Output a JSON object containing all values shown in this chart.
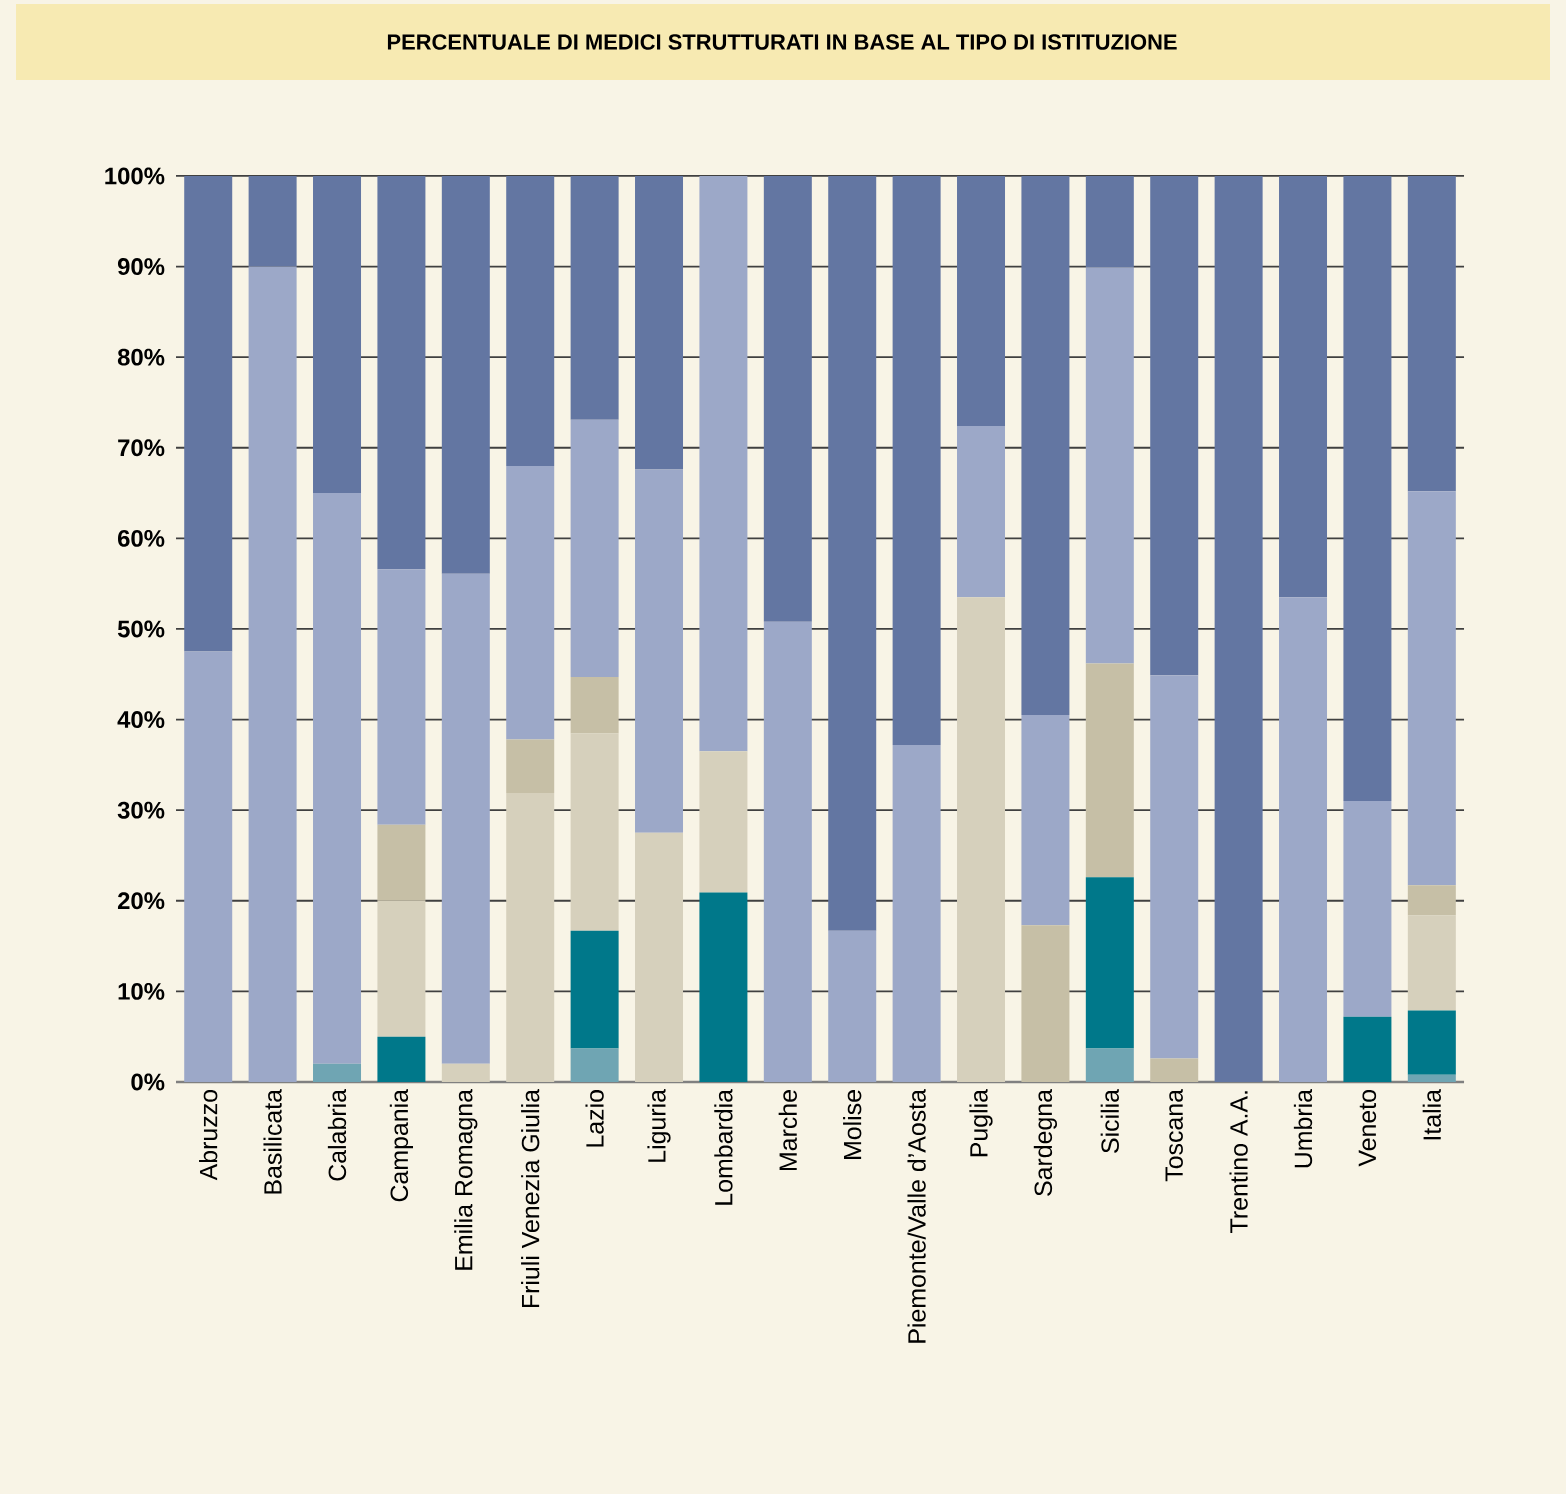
{
  "chart_data": {
    "type": "bar",
    "stacked": true,
    "title": "PERCENTUALE DI MEDICI STRUTTURATI IN BASE AL TIPO DI ISTITUZIONE",
    "categories": [
      "Abruzzo",
      "Basilicata",
      "Calabria",
      "Campania",
      "Emilia Romagna",
      "Friuli Venezia Giulia",
      "Lazio",
      "Liguria",
      "Lombardia",
      "Marche",
      "Molise",
      "Piemonte/Valle d’Aosta",
      "Puglia",
      "Sardegna",
      "Sicilia",
      "Toscana",
      "Trentino A.A.",
      "Umbria",
      "Veneto",
      "Italia"
    ],
    "series": [
      {
        "color": "#6fa5b3",
        "values": [
          0,
          0,
          2,
          0,
          0,
          0,
          3.7,
          0,
          0,
          0,
          0,
          0,
          0,
          0,
          3.7,
          0,
          0,
          0,
          0,
          0.8
        ]
      },
      {
        "color": "#00788a",
        "values": [
          0,
          0,
          0,
          5,
          0,
          0,
          13,
          0,
          20.9,
          0,
          0,
          0,
          0,
          0,
          18.9,
          0,
          0,
          0,
          7.2,
          7.1
        ]
      },
      {
        "color": "#d6d0bc",
        "values": [
          0,
          0,
          0,
          15,
          2,
          31.9,
          21.8,
          27.5,
          15.6,
          0,
          0,
          0,
          53.5,
          0,
          0,
          0,
          0,
          0,
          0,
          10.5
        ]
      },
      {
        "color": "#c6bfa6",
        "values": [
          0,
          0,
          0,
          8.4,
          0,
          5.9,
          6.2,
          0,
          0,
          0,
          0,
          0,
          0,
          17.3,
          23.6,
          2.6,
          0,
          0,
          0,
          3.3
        ]
      },
      {
        "color": "#9ca8c8",
        "values": [
          47.5,
          90,
          63,
          28.2,
          54.1,
          30.2,
          28.4,
          40.1,
          63.5,
          50.8,
          16.7,
          37.2,
          18.9,
          23.2,
          43.7,
          42.3,
          0,
          53.5,
          23.8,
          43.5
        ]
      },
      {
        "color": "#6376a2",
        "values": [
          52.5,
          10,
          35,
          43.4,
          43.9,
          32,
          26.9,
          32.4,
          0,
          49.2,
          83.3,
          62.8,
          27.6,
          59.5,
          10.1,
          55.1,
          100,
          46.5,
          69,
          34.8
        ]
      }
    ],
    "ylim": [
      0,
      100
    ],
    "yticks": [
      {
        "value": 0,
        "label": "0%"
      },
      {
        "value": 10,
        "label": "10%"
      },
      {
        "value": 20,
        "label": "20%"
      },
      {
        "value": 30,
        "label": "30%"
      },
      {
        "value": 40,
        "label": "40%"
      },
      {
        "value": 50,
        "label": "50%"
      },
      {
        "value": 60,
        "label": "60%"
      },
      {
        "value": 70,
        "label": "70%"
      },
      {
        "value": 80,
        "label": "80%"
      },
      {
        "value": 90,
        "label": "90%"
      },
      {
        "value": 100,
        "label": "100%"
      }
    ],
    "grid": "y"
  }
}
